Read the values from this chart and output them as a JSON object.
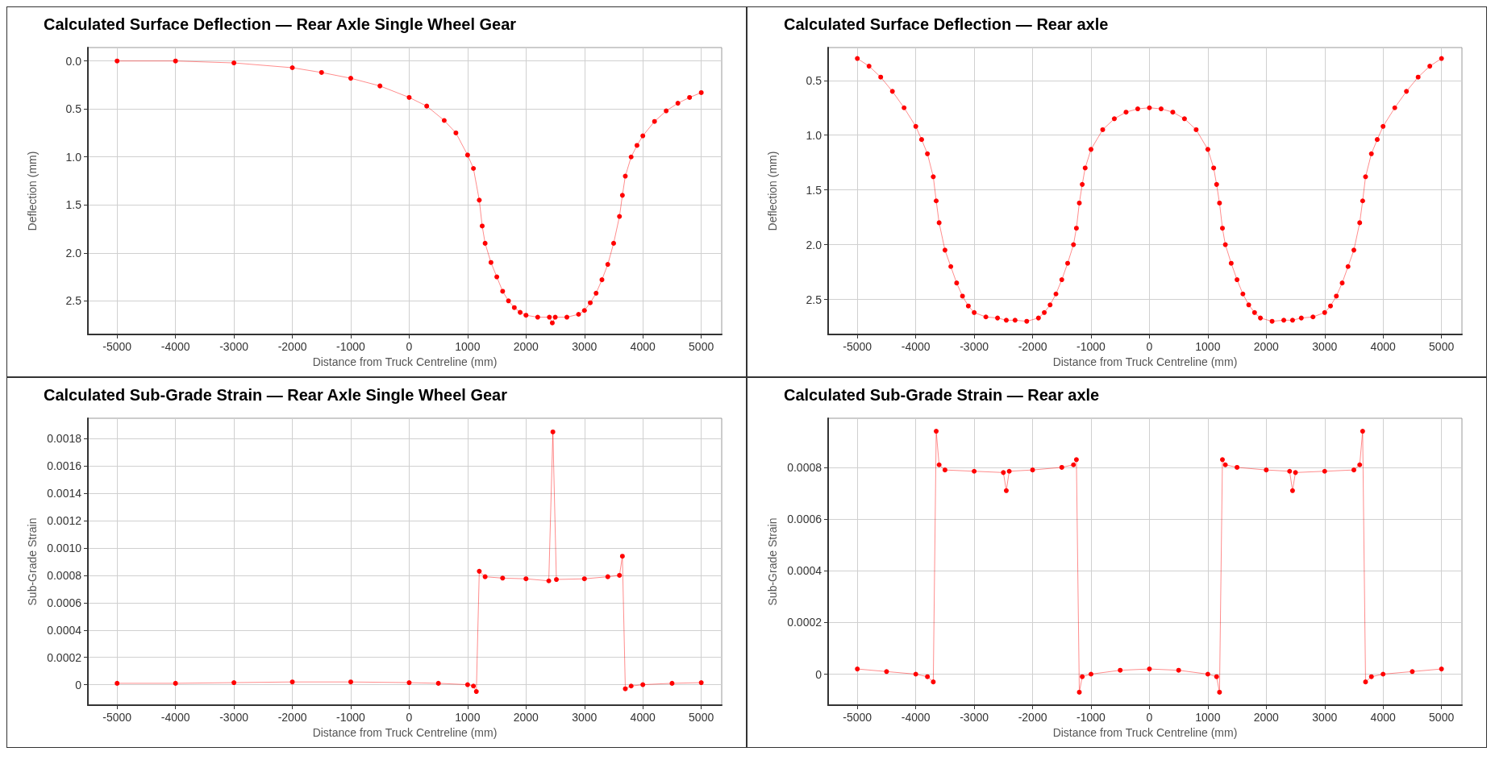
{
  "chart_data": [
    {
      "type": "line",
      "title": "Calculated Surface Deflection — Rear Axle Single Wheel Gear",
      "xlabel": "Distance from Truck Centreline (mm)",
      "ylabel": "Deflection (mm)",
      "marker": "circle",
      "grid": true,
      "xlim": [
        -5500,
        5350
      ],
      "xticks": [
        -5000,
        -4000,
        -3000,
        -2000,
        -1000,
        0,
        1000,
        2000,
        3000,
        4000,
        5000
      ],
      "ylim": [
        2.85,
        -0.14
      ],
      "yticks": [
        {
          "value": 0,
          "label": "0.0"
        },
        0.5,
        {
          "value": 1,
          "label": "1.0"
        },
        1.5,
        {
          "value": 2,
          "label": "2.0"
        },
        2.5
      ],
      "series": [
        {
          "color": "#ff0000",
          "x": [
            -5000,
            -4000,
            -3000,
            -2000,
            -1500,
            -1000,
            -500,
            0,
            300,
            600,
            800,
            1000,
            1100,
            1200,
            1250,
            1300,
            1400,
            1500,
            1600,
            1700,
            1800,
            1900,
            2000,
            2200,
            2400,
            2450,
            2500,
            2700,
            2900,
            3000,
            3100,
            3200,
            3300,
            3400,
            3500,
            3600,
            3650,
            3700,
            3800,
            3900,
            4000,
            4200,
            4400,
            4600,
            4800,
            5000
          ],
          "values": [
            0,
            0,
            0.02,
            0.07,
            0.12,
            0.18,
            0.26,
            0.38,
            0.47,
            0.62,
            0.75,
            0.98,
            1.12,
            1.45,
            1.72,
            1.9,
            2.1,
            2.25,
            2.4,
            2.5,
            2.57,
            2.62,
            2.65,
            2.67,
            2.67,
            2.73,
            2.67,
            2.67,
            2.64,
            2.6,
            2.52,
            2.42,
            2.28,
            2.12,
            1.9,
            1.62,
            1.4,
            1.2,
            1,
            0.88,
            0.78,
            0.63,
            0.52,
            0.44,
            0.38,
            0.33
          ]
        }
      ]
    },
    {
      "type": "line",
      "title": "Calculated Surface Deflection — Rear axle",
      "xlabel": "Distance from Truck Centreline (mm)",
      "ylabel": "Deflection (mm)",
      "marker": "circle",
      "grid": true,
      "xlim": [
        -5500,
        5350
      ],
      "xticks": [
        -5000,
        -4000,
        -3000,
        -2000,
        -1000,
        0,
        1000,
        2000,
        3000,
        4000,
        5000
      ],
      "ylim": [
        2.82,
        0.2
      ],
      "yticks": [
        0.5,
        {
          "value": 1,
          "label": "1.0"
        },
        1.5,
        {
          "value": 2,
          "label": "2.0"
        },
        2.5
      ],
      "series": [
        {
          "color": "#ff0000",
          "x": [
            -5000,
            -4800,
            -4600,
            -4400,
            -4200,
            -4000,
            -3900,
            -3800,
            -3700,
            -3650,
            -3600,
            -3500,
            -3400,
            -3300,
            -3200,
            -3100,
            -3000,
            -2800,
            -2600,
            -2450,
            -2300,
            -2100,
            -1900,
            -1800,
            -1700,
            -1600,
            -1500,
            -1400,
            -1300,
            -1250,
            -1200,
            -1150,
            -1100,
            -1000,
            -800,
            -600,
            -400,
            -200,
            0,
            200,
            400,
            600,
            800,
            1000,
            1100,
            1150,
            1200,
            1250,
            1300,
            1400,
            1500,
            1600,
            1700,
            1800,
            1900,
            2100,
            2300,
            2450,
            2600,
            2800,
            3000,
            3100,
            3200,
            3300,
            3400,
            3500,
            3600,
            3650,
            3700,
            3800,
            3900,
            4000,
            4200,
            4400,
            4600,
            4800,
            5000
          ],
          "values": [
            0.3,
            0.37,
            0.47,
            0.6,
            0.75,
            0.92,
            1.04,
            1.17,
            1.38,
            1.6,
            1.8,
            2.05,
            2.2,
            2.35,
            2.47,
            2.56,
            2.62,
            2.66,
            2.67,
            2.69,
            2.69,
            2.7,
            2.67,
            2.62,
            2.55,
            2.45,
            2.32,
            2.17,
            2,
            1.85,
            1.62,
            1.45,
            1.3,
            1.13,
            0.95,
            0.85,
            0.79,
            0.76,
            0.75,
            0.76,
            0.79,
            0.85,
            0.95,
            1.13,
            1.3,
            1.45,
            1.62,
            1.85,
            2,
            2.17,
            2.32,
            2.45,
            2.55,
            2.62,
            2.67,
            2.7,
            2.69,
            2.69,
            2.67,
            2.66,
            2.62,
            2.56,
            2.47,
            2.35,
            2.2,
            2.05,
            1.8,
            1.6,
            1.38,
            1.17,
            1.04,
            0.92,
            0.75,
            0.6,
            0.47,
            0.37,
            0.3
          ]
        }
      ]
    },
    {
      "type": "line",
      "title": "Calculated Sub-Grade Strain — Rear Axle Single Wheel Gear",
      "xlabel": "Distance from Truck Centreline (mm)",
      "ylabel": "Sub-Grade Strain",
      "marker": "circle",
      "grid": true,
      "xlim": [
        -5500,
        5350
      ],
      "xticks": [
        -5000,
        -4000,
        -3000,
        -2000,
        -1000,
        0,
        1000,
        2000,
        3000,
        4000,
        5000
      ],
      "ylim": [
        -0.00015,
        0.00195
      ],
      "yticks": [
        0,
        0.0002,
        0.0004,
        0.0006,
        0.0008,
        {
          "value": 0.001,
          "label": "0.0010"
        },
        0.0012,
        0.0014,
        0.0016,
        0.0018
      ],
      "series": [
        {
          "color": "#ff0000",
          "x": [
            -5000,
            -4000,
            -3000,
            -2000,
            -1000,
            0,
            500,
            1000,
            1100,
            1150,
            1200,
            1300,
            1600,
            2000,
            2390,
            2460,
            2520,
            3000,
            3400,
            3600,
            3650,
            3700,
            3800,
            4000,
            4500,
            5000
          ],
          "values": [
            1e-05,
            1e-05,
            1.5e-05,
            2e-05,
            2e-05,
            1.5e-05,
            1e-05,
            0,
            -1e-05,
            -5e-05,
            0.00083,
            0.00079,
            0.00078,
            0.000775,
            0.00076,
            0.00185,
            0.00077,
            0.000775,
            0.00079,
            0.0008,
            0.00094,
            -3e-05,
            -1e-05,
            0,
            1e-05,
            1.5e-05
          ]
        }
      ]
    },
    {
      "type": "line",
      "title": "Calculated Sub-Grade Strain — Rear axle",
      "xlabel": "Distance from Truck Centreline (mm)",
      "ylabel": "Sub-Grade Strain",
      "marker": "circle",
      "grid": true,
      "xlim": [
        -5500,
        5350
      ],
      "xticks": [
        -5000,
        -4000,
        -3000,
        -2000,
        -1000,
        0,
        1000,
        2000,
        3000,
        4000,
        5000
      ],
      "ylim": [
        -0.00012,
        0.00099
      ],
      "yticks": [
        0,
        0.0002,
        0.0004,
        0.0006,
        0.0008
      ],
      "series": [
        {
          "color": "#ff0000",
          "x": [
            -5000,
            -4500,
            -4000,
            -3800,
            -3700,
            -3650,
            -3600,
            -3500,
            -3000,
            -2500,
            -2450,
            -2400,
            -2000,
            -1500,
            -1300,
            -1250,
            -1200,
            -1150,
            -1000,
            -500,
            0,
            500,
            1000,
            1150,
            1200,
            1250,
            1300,
            1500,
            2000,
            2400,
            2450,
            2500,
            3000,
            3500,
            3600,
            3650,
            3700,
            3800,
            4000,
            4500,
            5000
          ],
          "values": [
            2e-05,
            1e-05,
            0,
            -1e-05,
            -3e-05,
            0.00094,
            0.00081,
            0.00079,
            0.000785,
            0.00078,
            0.00071,
            0.000785,
            0.00079,
            0.0008,
            0.00081,
            0.00083,
            -7e-05,
            -1e-05,
            0,
            1.5e-05,
            2e-05,
            1.5e-05,
            0,
            -1e-05,
            -7e-05,
            0.00083,
            0.00081,
            0.0008,
            0.00079,
            0.000785,
            0.00071,
            0.00078,
            0.000785,
            0.00079,
            0.00081,
            0.00094,
            -3e-05,
            -1e-05,
            0,
            1e-05,
            2e-05
          ]
        }
      ]
    }
  ]
}
